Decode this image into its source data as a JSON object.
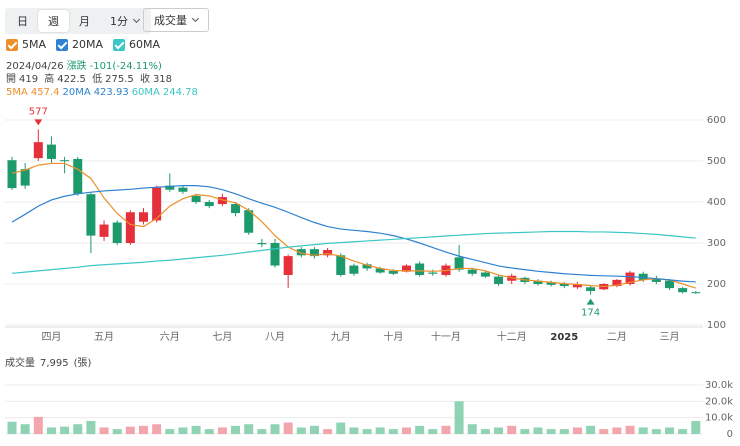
{
  "toolbar": {
    "tabs": [
      "日",
      "週",
      "月",
      "1分"
    ],
    "selected": 1,
    "dropdown": "成交量"
  },
  "info": {
    "date": "2024/04/26",
    "change_label": "漲跌",
    "change": "-101(-24.11%)",
    "open_label": "開",
    "high_label": "高",
    "low_label": "低",
    "close_label": "收"
  },
  "chart_data": [
    {
      "type": "candlestick",
      "categories": [
        null,
        null,
        null,
        "四月",
        null,
        null,
        null,
        "五月",
        null,
        null,
        null,
        null,
        "六月",
        null,
        null,
        null,
        "七月",
        null,
        null,
        null,
        "八月",
        null,
        null,
        null,
        null,
        "九月",
        null,
        null,
        null,
        "十月",
        null,
        null,
        null,
        "十一月",
        null,
        null,
        null,
        null,
        "十二月",
        null,
        null,
        null,
        "2025",
        null,
        null,
        null,
        "二月",
        null,
        null,
        null,
        "三月",
        null,
        null
      ],
      "candles": {
        "open": [
          502,
          480,
          507,
          540,
          502,
          505,
          419,
          315,
          350,
          300,
          352,
          355,
          440,
          435,
          415,
          400,
          395,
          395,
          380,
          300,
          300,
          222,
          285,
          285,
          270,
          270,
          245,
          248,
          238,
          232,
          230,
          250,
          228,
          222,
          265,
          235,
          228,
          218,
          208,
          215,
          208,
          205,
          200,
          192,
          192,
          187,
          195,
          200,
          225,
          212,
          208,
          190,
          180
        ],
        "high": [
          510,
          495,
          577,
          560,
          510,
          510,
          422.5,
          355,
          355,
          380,
          385,
          440,
          470,
          440,
          420,
          405,
          420,
          400,
          385,
          310,
          310,
          272,
          290,
          290,
          288,
          275,
          250,
          252,
          242,
          236,
          248,
          255,
          235,
          250,
          295,
          240,
          232,
          222,
          225,
          218,
          212,
          208,
          205,
          205,
          195,
          202,
          212,
          232,
          230,
          220,
          212,
          193,
          183
        ],
        "low": [
          430,
          432,
          500,
          495,
          470,
          415,
          275.5,
          305,
          295,
          295,
          345,
          350,
          425,
          420,
          395,
          385,
          390,
          365,
          320,
          290,
          240,
          190,
          265,
          262,
          265,
          218,
          220,
          232,
          225,
          222,
          228,
          218,
          220,
          218,
          230,
          220,
          215,
          195,
          200,
          200,
          196,
          194,
          190,
          188,
          174,
          185,
          192,
          196,
          205,
          200,
          185,
          177,
          176
        ],
        "close": [
          434,
          440,
          546,
          505,
          500,
          420,
          318,
          345,
          300,
          375,
          375,
          435,
          430,
          425,
          400,
          390,
          412,
          373,
          325,
          297,
          245,
          268,
          270,
          268,
          283,
          222,
          225,
          238,
          228,
          225,
          245,
          222,
          225,
          245,
          235,
          225,
          218,
          200,
          220,
          205,
          200,
          198,
          195,
          200,
          183,
          200,
          210,
          228,
          210,
          205,
          190,
          180,
          178
        ]
      },
      "up_color": "#e5303b",
      "down_color": "#1d9a6c",
      "series": [
        {
          "name": "5MA",
          "color": "#ef8f2a",
          "values": [
            470,
            478,
            490,
            494,
            494,
            480,
            457.4,
            410,
            372,
            345,
            340,
            360,
            390,
            408,
            418,
            415,
            405,
            398,
            380,
            352,
            318,
            290,
            275,
            270,
            274,
            268,
            256,
            246,
            238,
            233,
            232,
            232,
            231,
            233,
            238,
            238,
            232,
            222,
            215,
            210,
            207,
            204,
            201,
            199,
            196,
            194,
            197,
            204,
            210,
            213,
            210,
            200,
            190
          ]
        },
        {
          "name": "20MA",
          "color": "#2e82cf",
          "values": [
            351,
            370,
            390,
            405,
            414,
            420,
            423.93,
            427,
            429,
            431,
            434,
            436,
            438,
            440,
            440,
            437,
            430,
            420,
            408,
            397,
            387,
            375,
            362,
            350,
            340,
            334,
            331,
            328,
            324,
            318,
            310,
            300,
            289,
            278,
            268,
            260,
            252,
            244,
            239,
            235,
            231,
            228,
            225,
            223,
            221,
            220,
            219,
            218,
            216,
            213,
            210,
            207,
            205
          ]
        },
        {
          "name": "60MA",
          "color": "#3cc6c6",
          "values": [
            226,
            229,
            232,
            235,
            238,
            241,
            244.78,
            247,
            249,
            251,
            253,
            256,
            258,
            261,
            264,
            267,
            270,
            274,
            278,
            282,
            286,
            290,
            293,
            296,
            299,
            301,
            303,
            305,
            307,
            309,
            311,
            313,
            315,
            317,
            319,
            321,
            323,
            324,
            325,
            326,
            327,
            328,
            328,
            328,
            327,
            327,
            326,
            325,
            323,
            321,
            318,
            315,
            312
          ]
        }
      ],
      "ylim": [
        100,
        600
      ],
      "yticks": [
        100,
        200,
        300,
        400,
        500,
        600
      ],
      "grid": true
    },
    {
      "type": "bar",
      "title": "成交量",
      "current": {
        "value": 7995,
        "label": "7,995"
      },
      "unit": "(張)",
      "values": [
        7500,
        6000,
        10500,
        4000,
        4500,
        6000,
        8000,
        4000,
        3000,
        4500,
        5000,
        6000,
        3000,
        4000,
        5000,
        3000,
        4000,
        5000,
        6000,
        3000,
        6000,
        7000,
        4000,
        5000,
        3000,
        7000,
        4000,
        3000,
        4000,
        3000,
        4000,
        5000,
        3000,
        5000,
        20000,
        6000,
        3000,
        4000,
        5000,
        3000,
        4000,
        3000,
        3000,
        4000,
        5000,
        3000,
        4000,
        5000,
        4000,
        3000,
        4000,
        3000,
        7995
      ],
      "up_color": "#f2a6ac",
      "down_color": "#8fd3b4",
      "ylim": [
        0,
        30000
      ],
      "yticks": [
        0,
        {
          "value": 10000,
          "label": "10.0k"
        },
        {
          "value": 20000,
          "label": "20.0k"
        },
        {
          "value": 30000,
          "label": "30.0k"
        }
      ]
    }
  ]
}
